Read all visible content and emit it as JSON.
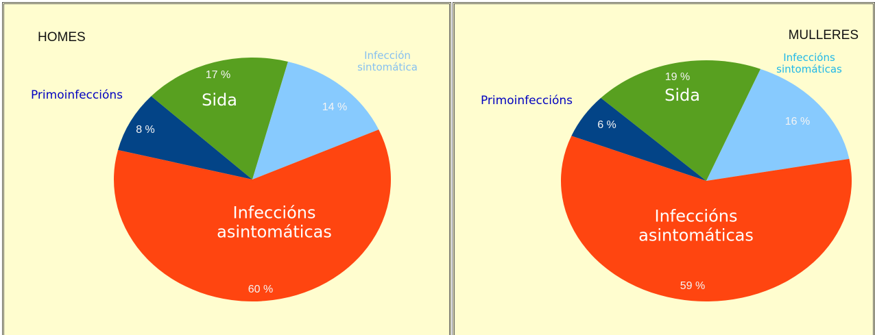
{
  "chart_data": [
    {
      "type": "pie",
      "title": "HOMES",
      "categories": [
        "Primoinfeccións",
        "Sida",
        "Infección sintomática",
        "Infeccións asintomáticas"
      ],
      "values": [
        8,
        17,
        14,
        60
      ],
      "value_labels": [
        "8 %",
        "17 %",
        "14 %",
        "60 %"
      ],
      "colors": [
        "#034487",
        "#58a020",
        "#87cafe",
        "#ff4510"
      ]
    },
    {
      "type": "pie",
      "title": "MULLERES",
      "categories": [
        "Primoinfeccións",
        "Sida",
        "Infeccións sintomáticas",
        "Infeccións asintomáticas"
      ],
      "values": [
        6,
        19,
        16,
        59
      ],
      "value_labels": [
        "6 %",
        "19 %",
        "16 %",
        "59 %"
      ],
      "colors": [
        "#034487",
        "#58a020",
        "#87cafe",
        "#ff4510"
      ]
    }
  ]
}
